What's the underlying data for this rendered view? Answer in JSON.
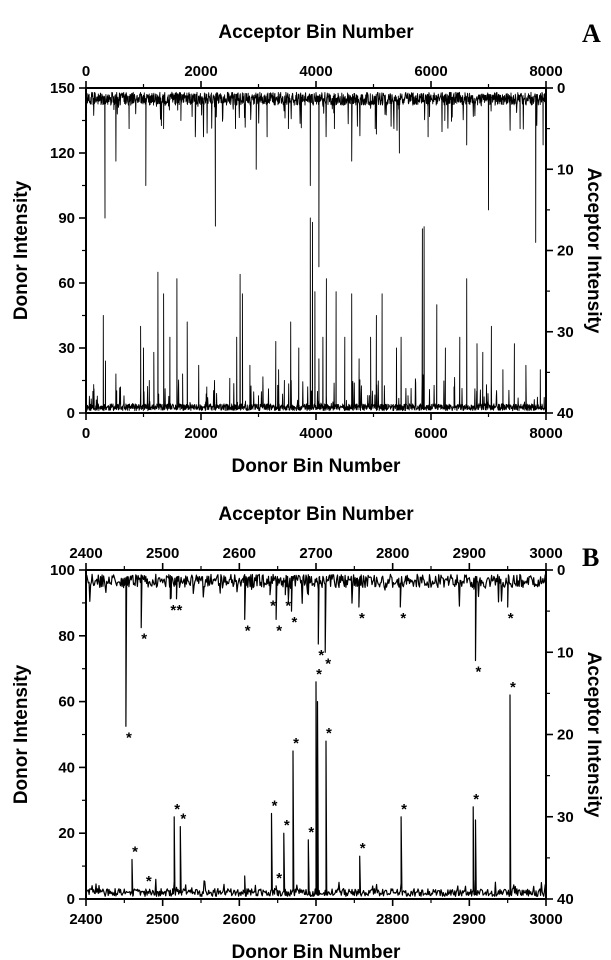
{
  "chart_data": [
    {
      "type": "line",
      "panel_label": "A",
      "top_xlabel": "Acceptor Bin Number",
      "xlabel": "Donor Bin Number",
      "ylabel": "Donor Intensity",
      "y2label": "Acceptor Intensity",
      "xlim": [
        0,
        8000
      ],
      "ylim": [
        0,
        150
      ],
      "y2lim": [
        0,
        40
      ],
      "y2_inverted": true,
      "xticks": [
        0,
        2000,
        4000,
        6000,
        8000
      ],
      "yticks": [
        0,
        30,
        60,
        90,
        120,
        150
      ],
      "y2ticks": [
        0,
        10,
        20,
        30,
        40
      ],
      "grid": false,
      "series": [
        {
          "name": "Donor",
          "axis": "left",
          "baseline": 2,
          "points": [
            [
              120,
              10
            ],
            [
              180,
              6
            ],
            [
              300,
              45
            ],
            [
              340,
              24
            ],
            [
              520,
              18
            ],
            [
              600,
              12
            ],
            [
              950,
              40
            ],
            [
              1000,
              30
            ],
            [
              1100,
              15
            ],
            [
              1180,
              28
            ],
            [
              1250,
              65
            ],
            [
              1350,
              55
            ],
            [
              1460,
              35
            ],
            [
              1580,
              62
            ],
            [
              1680,
              18
            ],
            [
              1760,
              42
            ],
            [
              1960,
              22
            ],
            [
              2100,
              12
            ],
            [
              2500,
              16
            ],
            [
              2620,
              35
            ],
            [
              2680,
              64
            ],
            [
              2720,
              55
            ],
            [
              2850,
              22
            ],
            [
              3000,
              8
            ],
            [
              3300,
              33
            ],
            [
              3350,
              20
            ],
            [
              3450,
              15
            ],
            [
              3560,
              42
            ],
            [
              3700,
              30
            ],
            [
              3900,
              90
            ],
            [
              3940,
              88
            ],
            [
              3980,
              56
            ],
            [
              4050,
              25
            ],
            [
              4120,
              35
            ],
            [
              4180,
              62
            ],
            [
              4350,
              56
            ],
            [
              4500,
              35
            ],
            [
              4620,
              55
            ],
            [
              4750,
              25
            ],
            [
              4950,
              35
            ],
            [
              5050,
              45
            ],
            [
              5150,
              55
            ],
            [
              5400,
              30
            ],
            [
              5480,
              35
            ],
            [
              5600,
              8
            ],
            [
              5850,
              85
            ],
            [
              5880,
              86
            ],
            [
              6100,
              50
            ],
            [
              6250,
              30
            ],
            [
              6400,
              12
            ],
            [
              6500,
              35
            ],
            [
              6620,
              62
            ],
            [
              6800,
              32
            ],
            [
              6900,
              28
            ],
            [
              7050,
              40
            ],
            [
              7250,
              20
            ],
            [
              7450,
              32
            ],
            [
              7650,
              22
            ],
            [
              7900,
              20
            ]
          ]
        },
        {
          "name": "Acceptor",
          "axis": "right",
          "baseline": 1,
          "points": [
            [
              330,
              16
            ],
            [
              520,
              9
            ],
            [
              750,
              5
            ],
            [
              1040,
              12
            ],
            [
              1350,
              5
            ],
            [
              1650,
              4
            ],
            [
              1900,
              6
            ],
            [
              2250,
              17
            ],
            [
              2600,
              5
            ],
            [
              2960,
              10
            ],
            [
              3150,
              6
            ],
            [
              3520,
              5
            ],
            [
              3900,
              12
            ],
            [
              4050,
              22
            ],
            [
              4320,
              5
            ],
            [
              4620,
              9
            ],
            [
              5030,
              5
            ],
            [
              5450,
              8
            ],
            [
              5950,
              6
            ],
            [
              6240,
              4
            ],
            [
              6620,
              7
            ],
            [
              7000,
              15
            ],
            [
              7550,
              5
            ],
            [
              7820,
              19
            ],
            [
              7950,
              7
            ]
          ]
        }
      ]
    },
    {
      "type": "line",
      "panel_label": "B",
      "top_xlabel": "Acceptor Bin Number",
      "xlabel": "Donor Bin Number",
      "ylabel": "Donor Intensity",
      "y2label": "Acceptor Intensity",
      "xlim": [
        2400,
        3000
      ],
      "ylim": [
        0,
        100
      ],
      "y2lim": [
        0,
        40
      ],
      "y2_inverted": true,
      "xticks": [
        2400,
        2500,
        2600,
        2700,
        2800,
        2900,
        3000
      ],
      "yticks": [
        0,
        20,
        40,
        60,
        80,
        100
      ],
      "y2ticks": [
        0,
        10,
        20,
        30,
        40
      ],
      "grid": false,
      "series": [
        {
          "name": "Donor",
          "axis": "left",
          "baseline": 1.5,
          "points": [
            [
              2460,
              12
            ],
            [
              2478,
              3
            ],
            [
              2515,
              25
            ],
            [
              2523,
              22
            ],
            [
              2607,
              7
            ],
            [
              2642,
              26
            ],
            [
              2648,
              4
            ],
            [
              2658,
              20
            ],
            [
              2670,
              45
            ],
            [
              2690,
              18
            ],
            [
              2700,
              66
            ],
            [
              2702,
              60
            ],
            [
              2713,
              48
            ],
            [
              2757,
              13
            ],
            [
              2811,
              25
            ],
            [
              2905,
              28
            ],
            [
              2908,
              24
            ],
            [
              2953,
              62
            ]
          ],
          "annotations": [
            {
              "x": 2460,
              "y": 12,
              "text": "*"
            },
            {
              "x": 2478,
              "y": 3,
              "text": "*"
            },
            {
              "x": 2515,
              "y": 25,
              "text": "*"
            },
            {
              "x": 2523,
              "y": 22,
              "text": "*"
            },
            {
              "x": 2642,
              "y": 26,
              "text": "*"
            },
            {
              "x": 2648,
              "y": 4,
              "text": "*"
            },
            {
              "x": 2658,
              "y": 20,
              "text": "*"
            },
            {
              "x": 2670,
              "y": 45,
              "text": "*"
            },
            {
              "x": 2690,
              "y": 18,
              "text": "*"
            },
            {
              "x": 2700,
              "y": 66,
              "text": "*"
            },
            {
              "x": 2713,
              "y": 48,
              "text": "*"
            },
            {
              "x": 2757,
              "y": 13,
              "text": "*"
            },
            {
              "x": 2811,
              "y": 25,
              "text": "*"
            },
            {
              "x": 2905,
              "y": 28,
              "text": "*"
            },
            {
              "x": 2953,
              "y": 62,
              "text": "*"
            }
          ]
        },
        {
          "name": "Acceptor",
          "axis": "right",
          "baseline": 1,
          "points": [
            [
              2452,
              19
            ],
            [
              2472,
              7
            ],
            [
              2510,
              3.5
            ],
            [
              2518,
              3.5
            ],
            [
              2607,
              6
            ],
            [
              2640,
              3
            ],
            [
              2648,
              6
            ],
            [
              2660,
              3
            ],
            [
              2668,
              5
            ],
            [
              2690,
              3
            ],
            [
              2703,
              9
            ],
            [
              2712,
              10
            ],
            [
              2756,
              4.5
            ],
            [
              2810,
              4.5
            ],
            [
              2908,
              11
            ],
            [
              2950,
              4.5
            ]
          ],
          "annotations": [
            {
              "x": 2452,
              "y": 19,
              "text": "*"
            },
            {
              "x": 2472,
              "y": 7,
              "text": "*"
            },
            {
              "x": 2510,
              "y": 3.5,
              "text": "*"
            },
            {
              "x": 2518,
              "y": 3.5,
              "text": "*"
            },
            {
              "x": 2607,
              "y": 6,
              "text": "*"
            },
            {
              "x": 2640,
              "y": 3,
              "text": "*"
            },
            {
              "x": 2648,
              "y": 6,
              "text": "*"
            },
            {
              "x": 2660,
              "y": 3,
              "text": "*"
            },
            {
              "x": 2668,
              "y": 5,
              "text": "*"
            },
            {
              "x": 2703,
              "y": 9,
              "text": "*"
            },
            {
              "x": 2712,
              "y": 10,
              "text": "*"
            },
            {
              "x": 2756,
              "y": 4.5,
              "text": "*"
            },
            {
              "x": 2810,
              "y": 4.5,
              "text": "*"
            },
            {
              "x": 2908,
              "y": 11,
              "text": "*"
            },
            {
              "x": 2950,
              "y": 4.5,
              "text": "*"
            }
          ]
        }
      ]
    }
  ]
}
